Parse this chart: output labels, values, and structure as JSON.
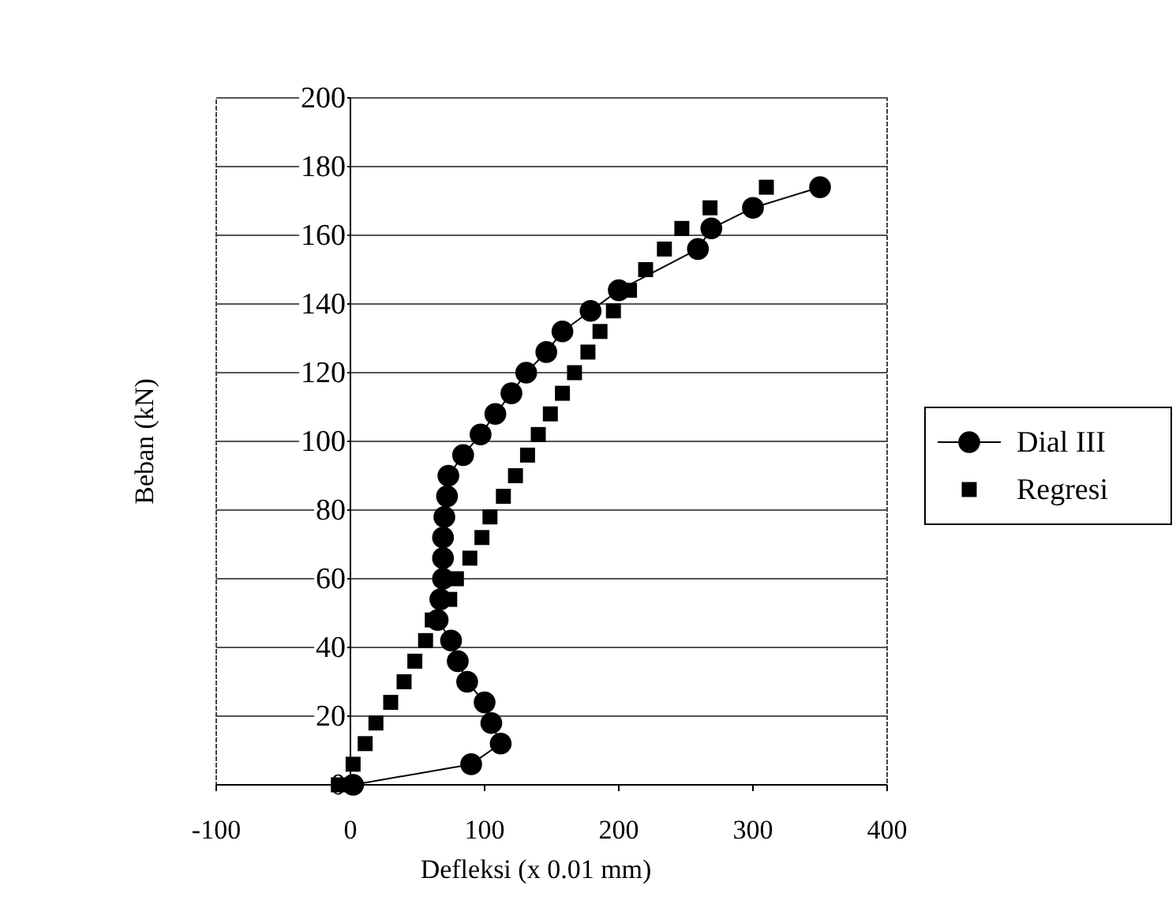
{
  "chart_data": {
    "type": "scatter",
    "xlabel": "Defleksi (x 0.01 mm)",
    "ylabel": "Beban (kN)",
    "xlim": [
      -100,
      400
    ],
    "xticks": [
      -100,
      0,
      100,
      200,
      300,
      400
    ],
    "ylim": [
      0,
      200
    ],
    "yticks": [
      0,
      20,
      40,
      60,
      80,
      100,
      120,
      140,
      160,
      180,
      200
    ],
    "grid": "y",
    "legend": "right",
    "series": [
      {
        "name": "Dial III",
        "type": "line",
        "marker": "circle",
        "line_style": "solid",
        "color": "#000000",
        "x": [
          2,
          90,
          112,
          105,
          100,
          87,
          80,
          75,
          65,
          67,
          69,
          69,
          69,
          70,
          72,
          73,
          84,
          97,
          108,
          120,
          131,
          146,
          158,
          179,
          200,
          259,
          269,
          300,
          350
        ],
        "values": [
          0,
          6,
          12,
          18,
          24,
          30,
          36,
          42,
          48,
          54,
          60,
          66,
          72,
          78,
          84,
          90,
          96,
          102,
          108,
          114,
          120,
          126,
          132,
          138,
          144,
          156,
          162,
          168,
          174
        ]
      },
      {
        "name": "Regresi",
        "type": "scatter",
        "marker": "square",
        "color": "#000000",
        "x": [
          -9,
          2,
          11,
          19,
          30,
          40,
          48,
          56,
          61,
          74,
          79,
          89,
          98,
          104,
          114,
          123,
          132,
          140,
          149,
          158,
          167,
          177,
          186,
          196,
          208,
          220,
          234,
          247,
          268,
          310
        ],
        "values": [
          0,
          6,
          12,
          18,
          24,
          30,
          36,
          42,
          48,
          54,
          60,
          66,
          72,
          78,
          84,
          90,
          96,
          102,
          108,
          114,
          120,
          126,
          132,
          138,
          144,
          150,
          156,
          162,
          168,
          174
        ]
      }
    ]
  }
}
